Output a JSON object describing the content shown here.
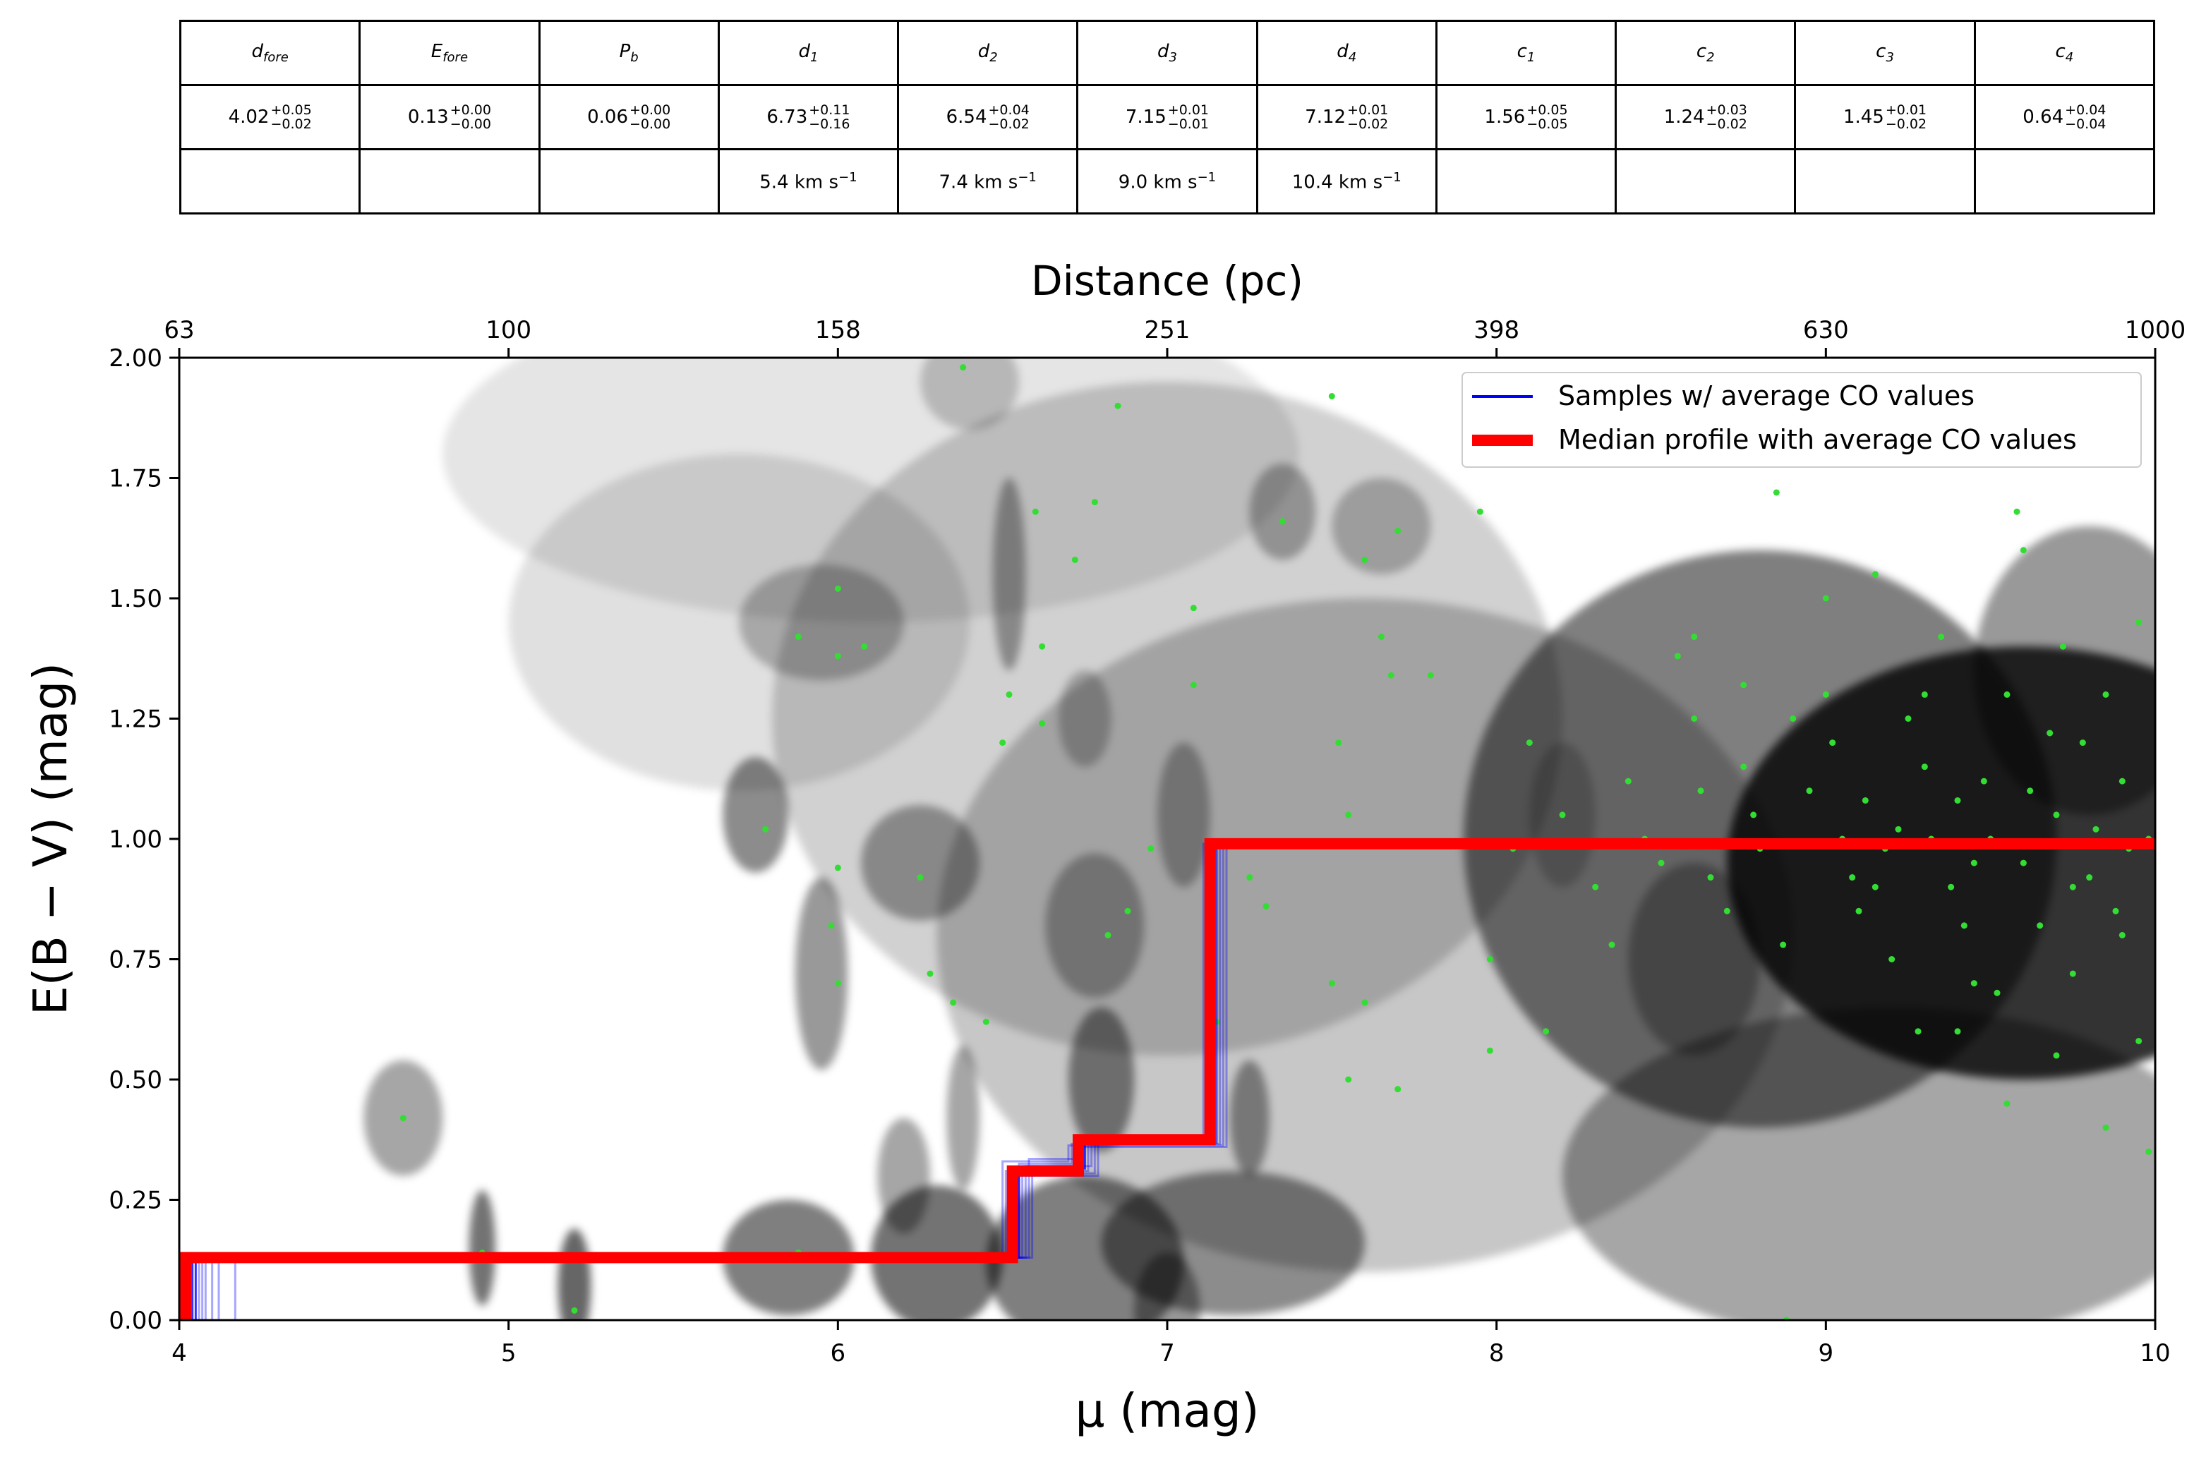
{
  "table": {
    "headers": [
      {
        "base": "d",
        "sub": "fore"
      },
      {
        "base": "E",
        "sub": "fore"
      },
      {
        "base": "P",
        "sub": "b"
      },
      {
        "base": "d",
        "sub": "1"
      },
      {
        "base": "d",
        "sub": "2"
      },
      {
        "base": "d",
        "sub": "3"
      },
      {
        "base": "d",
        "sub": "4"
      },
      {
        "base": "c",
        "sub": "1"
      },
      {
        "base": "c",
        "sub": "2"
      },
      {
        "base": "c",
        "sub": "3"
      },
      {
        "base": "c",
        "sub": "4"
      }
    ],
    "values": [
      {
        "v": "4.02",
        "plus": "+0.05",
        "minus": "−0.02"
      },
      {
        "v": "0.13",
        "plus": "+0.00",
        "minus": "−0.00"
      },
      {
        "v": "0.06",
        "plus": "+0.00",
        "minus": "−0.00"
      },
      {
        "v": "6.73",
        "plus": "+0.11",
        "minus": "−0.16"
      },
      {
        "v": "6.54",
        "plus": "+0.04",
        "minus": "−0.02"
      },
      {
        "v": "7.15",
        "plus": "+0.01",
        "minus": "−0.01"
      },
      {
        "v": "7.12",
        "plus": "+0.01",
        "minus": "−0.02"
      },
      {
        "v": "1.56",
        "plus": "+0.05",
        "minus": "−0.05"
      },
      {
        "v": "1.24",
        "plus": "+0.03",
        "minus": "−0.02"
      },
      {
        "v": "1.45",
        "plus": "+0.01",
        "minus": "−0.02"
      },
      {
        "v": "0.64",
        "plus": "+0.04",
        "minus": "−0.04"
      }
    ],
    "velocities": [
      "",
      "",
      "",
      "5.4 km s",
      "7.4 km s",
      "9.0 km s",
      "10.4 km s",
      "",
      "",
      "",
      ""
    ],
    "velocity_unit_exp": "−1"
  },
  "chart_data": {
    "type": "line",
    "xlabel": "μ (mag)",
    "ylabel": "E(B − V) (mag)",
    "top_xlabel": "Distance (pc)",
    "xlim": [
      4,
      10
    ],
    "ylim": [
      0,
      2
    ],
    "x_ticks": [
      "4",
      "5",
      "6",
      "7",
      "8",
      "9",
      "10"
    ],
    "y_ticks": [
      "0.00",
      "0.25",
      "0.50",
      "0.75",
      "1.00",
      "1.25",
      "1.50",
      "1.75",
      "2.00"
    ],
    "top_ticks": [
      "63",
      "100",
      "158",
      "251",
      "398",
      "630",
      "1000"
    ],
    "legend": {
      "position": "upper-right",
      "entries": [
        "Samples  w/ average CO values",
        "Median profile with average CO values"
      ]
    },
    "colors": {
      "samples": "#0000ff",
      "median": "#ff0000",
      "stars": "#33dd33"
    },
    "median_profile": [
      [
        4.02,
        0.0
      ],
      [
        4.02,
        0.13
      ],
      [
        6.53,
        0.13
      ],
      [
        6.53,
        0.31
      ],
      [
        6.73,
        0.31
      ],
      [
        6.73,
        0.375
      ],
      [
        7.13,
        0.375
      ],
      [
        7.13,
        0.99
      ],
      [
        10.0,
        0.99
      ]
    ],
    "density_blobs": [
      [
        9.6,
        0.95,
        0.9,
        0.45,
        0.8
      ],
      [
        8.8,
        1.0,
        0.9,
        0.6,
        0.5
      ],
      [
        9.8,
        1.35,
        0.35,
        0.3,
        0.4
      ],
      [
        9.2,
        0.3,
        1.0,
        0.35,
        0.35
      ],
      [
        7.6,
        0.8,
        1.3,
        0.7,
        0.22
      ],
      [
        7.0,
        1.25,
        1.2,
        0.7,
        0.18
      ],
      [
        5.95,
        1.45,
        0.25,
        0.12,
        0.25
      ],
      [
        5.75,
        1.05,
        0.1,
        0.12,
        0.45
      ],
      [
        5.95,
        0.72,
        0.08,
        0.2,
        0.4
      ],
      [
        6.25,
        0.95,
        0.18,
        0.12,
        0.35
      ],
      [
        6.78,
        0.82,
        0.15,
        0.15,
        0.3
      ],
      [
        7.05,
        1.05,
        0.08,
        0.15,
        0.3
      ],
      [
        7.35,
        1.68,
        0.1,
        0.1,
        0.3
      ],
      [
        7.65,
        1.65,
        0.15,
        0.1,
        0.25
      ],
      [
        6.52,
        1.55,
        0.05,
        0.2,
        0.35
      ],
      [
        6.75,
        1.25,
        0.08,
        0.1,
        0.25
      ],
      [
        6.4,
        1.95,
        0.15,
        0.1,
        0.2
      ],
      [
        4.68,
        0.42,
        0.12,
        0.12,
        0.35
      ],
      [
        4.92,
        0.15,
        0.04,
        0.12,
        0.55
      ],
      [
        5.2,
        0.07,
        0.05,
        0.12,
        0.6
      ],
      [
        5.85,
        0.13,
        0.2,
        0.12,
        0.5
      ],
      [
        6.3,
        0.13,
        0.2,
        0.15,
        0.55
      ],
      [
        6.75,
        0.12,
        0.3,
        0.18,
        0.5
      ],
      [
        7.2,
        0.16,
        0.4,
        0.15,
        0.45
      ],
      [
        6.2,
        0.3,
        0.08,
        0.12,
        0.35
      ],
      [
        6.38,
        0.42,
        0.05,
        0.15,
        0.35
      ],
      [
        6.8,
        0.5,
        0.1,
        0.15,
        0.45
      ],
      [
        7.25,
        0.42,
        0.06,
        0.12,
        0.4
      ],
      [
        7.0,
        0.02,
        0.1,
        0.12,
        0.4
      ],
      [
        6.1,
        1.8,
        1.3,
        0.35,
        0.1
      ],
      [
        5.7,
        1.45,
        0.7,
        0.35,
        0.12
      ],
      [
        8.2,
        1.05,
        0.1,
        0.15,
        0.2
      ],
      [
        8.6,
        0.75,
        0.2,
        0.2,
        0.3
      ]
    ],
    "star_points": [
      [
        4.68,
        0.42
      ],
      [
        4.92,
        0.14
      ],
      [
        5.2,
        0.02
      ],
      [
        5.78,
        1.02
      ],
      [
        5.88,
        1.42
      ],
      [
        5.88,
        0.14
      ],
      [
        6.0,
        1.52
      ],
      [
        6.0,
        1.38
      ],
      [
        6.08,
        1.4
      ],
      [
        6.0,
        0.94
      ],
      [
        5.98,
        0.82
      ],
      [
        6.0,
        0.7
      ],
      [
        6.25,
        0.92
      ],
      [
        6.28,
        0.72
      ],
      [
        6.38,
        1.98
      ],
      [
        6.35,
        0.66
      ],
      [
        6.45,
        0.62
      ],
      [
        6.52,
        1.3
      ],
      [
        6.5,
        1.2
      ],
      [
        6.6,
        1.68
      ],
      [
        6.62,
        1.4
      ],
      [
        6.62,
        1.24
      ],
      [
        6.72,
        1.58
      ],
      [
        6.78,
        1.7
      ],
      [
        6.85,
        1.9
      ],
      [
        6.82,
        0.8
      ],
      [
        6.88,
        0.85
      ],
      [
        6.95,
        0.98
      ],
      [
        7.08,
        1.48
      ],
      [
        7.08,
        1.32
      ],
      [
        7.15,
        0.62
      ],
      [
        7.25,
        0.92
      ],
      [
        7.3,
        0.86
      ],
      [
        7.35,
        1.66
      ],
      [
        7.5,
        1.92
      ],
      [
        7.52,
        1.2
      ],
      [
        7.55,
        1.05
      ],
      [
        7.6,
        1.58
      ],
      [
        7.65,
        1.42
      ],
      [
        7.68,
        1.34
      ],
      [
        7.7,
        1.64
      ],
      [
        7.7,
        0.48
      ],
      [
        7.8,
        1.34
      ],
      [
        7.5,
        0.7
      ],
      [
        7.6,
        0.66
      ],
      [
        7.55,
        0.5
      ],
      [
        7.95,
        1.68
      ],
      [
        7.98,
        0.75
      ],
      [
        7.98,
        0.56
      ],
      [
        8.1,
        1.2
      ],
      [
        8.05,
        0.98
      ],
      [
        8.15,
        0.6
      ],
      [
        8.2,
        1.05
      ],
      [
        8.3,
        0.9
      ],
      [
        8.35,
        0.78
      ],
      [
        8.4,
        1.12
      ],
      [
        8.45,
        1.0
      ],
      [
        8.5,
        0.95
      ],
      [
        8.55,
        1.38
      ],
      [
        8.6,
        1.42
      ],
      [
        8.62,
        1.1
      ],
      [
        8.65,
        0.92
      ],
      [
        8.7,
        0.85
      ],
      [
        8.75,
        1.32
      ],
      [
        8.78,
        1.05
      ],
      [
        8.8,
        0.98
      ],
      [
        8.85,
        1.72
      ],
      [
        8.87,
        0.78
      ],
      [
        8.88,
        0.0
      ],
      [
        8.9,
        1.25
      ],
      [
        8.95,
        1.1
      ],
      [
        9.0,
        1.5
      ],
      [
        9.02,
        1.2
      ],
      [
        9.05,
        1.0
      ],
      [
        9.08,
        0.92
      ],
      [
        9.1,
        0.85
      ],
      [
        9.12,
        1.08
      ],
      [
        9.15,
        1.55
      ],
      [
        9.18,
        0.98
      ],
      [
        9.2,
        0.75
      ],
      [
        9.22,
        1.02
      ],
      [
        9.25,
        1.25
      ],
      [
        9.28,
        0.6
      ],
      [
        9.3,
        1.15
      ],
      [
        9.32,
        1.0
      ],
      [
        9.35,
        1.42
      ],
      [
        9.38,
        0.9
      ],
      [
        9.4,
        1.08
      ],
      [
        9.42,
        0.82
      ],
      [
        9.45,
        0.7
      ],
      [
        9.48,
        1.12
      ],
      [
        9.5,
        1.0
      ],
      [
        9.52,
        0.68
      ],
      [
        9.55,
        1.3
      ],
      [
        9.58,
        1.68
      ],
      [
        9.6,
        1.6
      ],
      [
        9.6,
        0.95
      ],
      [
        9.62,
        1.1
      ],
      [
        9.65,
        0.82
      ],
      [
        9.68,
        1.22
      ],
      [
        9.7,
        1.05
      ],
      [
        9.72,
        1.4
      ],
      [
        9.75,
        0.72
      ],
      [
        9.78,
        1.2
      ],
      [
        9.8,
        0.92
      ],
      [
        9.82,
        1.02
      ],
      [
        9.85,
        1.3
      ],
      [
        9.85,
        0.4
      ],
      [
        9.88,
        0.85
      ],
      [
        9.9,
        1.12
      ],
      [
        9.92,
        0.98
      ],
      [
        9.95,
        1.45
      ],
      [
        9.95,
        0.58
      ],
      [
        9.98,
        0.35
      ],
      [
        9.98,
        1.0
      ],
      [
        9.7,
        0.55
      ],
      [
        9.55,
        0.45
      ],
      [
        9.4,
        0.6
      ],
      [
        8.6,
        1.25
      ],
      [
        8.75,
        1.15
      ],
      [
        9.0,
        1.3
      ],
      [
        9.3,
        1.3
      ],
      [
        9.9,
        0.8
      ],
      [
        9.75,
        0.9
      ],
      [
        9.45,
        0.95
      ],
      [
        9.15,
        0.9
      ]
    ]
  }
}
